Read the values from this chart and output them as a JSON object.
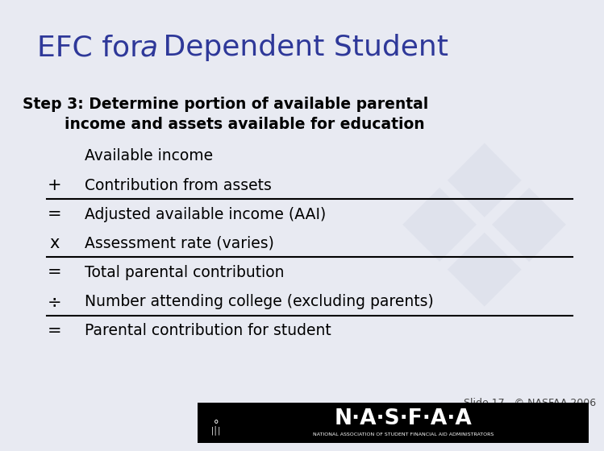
{
  "title_pre": "EFC for ",
  "title_italic": "a",
  "title_post": " Dependent Student",
  "title_color": "#2E3899",
  "title_fontsize": 26,
  "bg_color": "#E8EAF2",
  "content_bg": "#DDE1EF",
  "header_bg": "#FFFFFF",
  "footer_bg": "#000000",
  "step_line1": "Step 3: Determine portion of available parental",
  "step_line2": "        income and assets available for education",
  "step_fontsize": 13.5,
  "rows": [
    {
      "operator": "",
      "text": "Available income",
      "line_below": false
    },
    {
      "operator": "+",
      "text": "Contribution from assets",
      "line_below": true
    },
    {
      "operator": "=",
      "text": "Adjusted available income (AAI)",
      "line_below": false
    },
    {
      "operator": "x",
      "text": "Assessment rate (varies)",
      "line_below": true
    },
    {
      "operator": "=",
      "text": "Total parental contribution",
      "line_below": false
    },
    {
      "operator": "÷",
      "text": "Number attending college (excluding parents)",
      "line_below": true
    },
    {
      "operator": "=",
      "text": "Parental contribution for student",
      "line_below": false
    }
  ],
  "row_fontsize": 13.5,
  "operator_fontsize": 15,
  "slide_note": "Slide 17   © NASFAA 2006",
  "slide_note_fontsize": 9,
  "nasfaa_text": "N·A·S·F·A·A",
  "nasfaa_sub": "NATIONAL ASSOCIATION OF STUDENT FINANCIAL AID ADMINISTRATORS",
  "watermark_color": "#C8CEDE",
  "line_color": "#000000",
  "text_color": "#000000"
}
